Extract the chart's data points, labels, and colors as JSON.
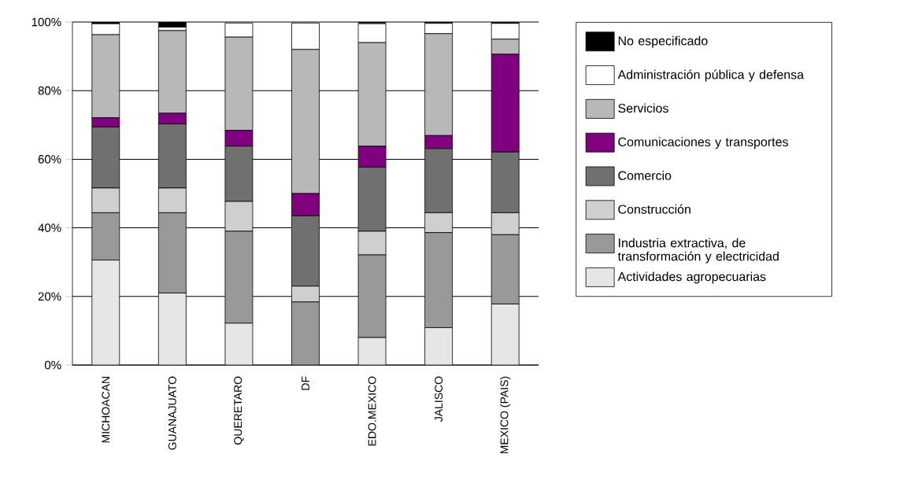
{
  "chart_data": {
    "type": "bar",
    "stacked": true,
    "categories": [
      "MICHOACAN",
      "GUANAJUATO",
      "QUERETARO",
      "DF",
      "EDO.MEXICO",
      "JALISCO",
      "MEXICO (PAIS)"
    ],
    "series": [
      {
        "name": "Actividades agropecuarias",
        "color": "#e6e6e6",
        "values": [
          30.6,
          21.0,
          12.2,
          0,
          8.0,
          10.9,
          17.8
        ]
      },
      {
        "name": "Industria extractiva, de transformación y electricidad",
        "color": "#999999",
        "values": [
          13.8,
          23.4,
          26.8,
          18.4,
          24.1,
          27.7,
          20.2
        ]
      },
      {
        "name": "Construcción",
        "color": "#cfcfcf",
        "values": [
          7.2,
          7.2,
          8.7,
          4.6,
          6.9,
          5.8,
          6.4
        ]
      },
      {
        "name": "Comercio",
        "color": "#707070",
        "values": [
          17.8,
          18.7,
          16.1,
          20.5,
          18.7,
          18.7,
          17.7
        ]
      },
      {
        "name": "Comunicaciones y transportes",
        "color": "#800080",
        "values": [
          2.7,
          3.1,
          4.6,
          6.5,
          6.1,
          3.8,
          28.5
        ]
      },
      {
        "name": "Servicios",
        "color": "#b8b8b8",
        "values": [
          24.2,
          24.1,
          27.2,
          42.0,
          30.2,
          29.7,
          4.4
        ]
      },
      {
        "name": "Administración pública y defensa",
        "color": "#ffffff",
        "values": [
          3.2,
          1.0,
          4.1,
          7.7,
          5.5,
          3.0,
          4.6
        ]
      },
      {
        "name": "No especificado",
        "color": "#000000",
        "values": [
          0.5,
          1.5,
          null,
          null,
          0.5,
          0.4,
          0.4
        ]
      }
    ],
    "ylim": [
      0,
      100
    ],
    "yticks": [
      {
        "value": 0,
        "label": "0%"
      },
      {
        "value": 20,
        "label": "20%"
      },
      {
        "value": 40,
        "label": "40%"
      },
      {
        "value": 60,
        "label": "60%"
      },
      {
        "value": 80,
        "label": "80%"
      },
      {
        "value": 100,
        "label": "100%"
      }
    ],
    "grid": "y",
    "legend": "right"
  }
}
